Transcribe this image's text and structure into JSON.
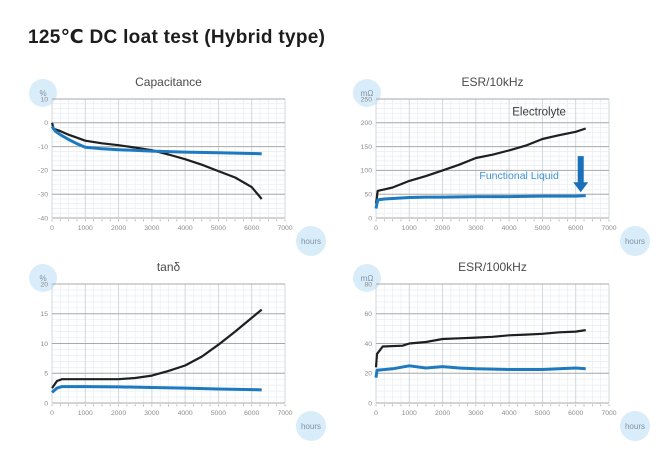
{
  "page": {
    "title": "125℃ DC loat test (Hybrid type)"
  },
  "colors": {
    "electrolyte_line": "#1f1f1f",
    "functional_liquid_line": "#1e7ac0",
    "arrow": "#1a70b8",
    "unit_bubble": "#d9ecfa",
    "grid_major_h": "#a9a9a9",
    "grid_major_v": "#ccd6dc",
    "grid_minor": "#e8eef2",
    "tick_label": "#8c8c8c"
  },
  "chart_data": [
    {
      "type": "line",
      "title": "Capacitance",
      "unit": "%",
      "xlabel": "hours",
      "xlim": [
        0,
        7000
      ],
      "ylim": [
        -40,
        10
      ],
      "xticks": [
        0,
        1000,
        2000,
        3000,
        4000,
        5000,
        6000,
        7000
      ],
      "yticks": [
        10,
        0,
        -10,
        -20,
        -30,
        -40
      ],
      "minor": {
        "x": 250,
        "y": 2
      },
      "grid": true,
      "series": [
        {
          "name": "Electrolyte",
          "color": "#1f1f1f",
          "width": 2.2,
          "x": [
            0,
            50,
            250,
            500,
            1000,
            1500,
            2000,
            2500,
            3000,
            3500,
            4000,
            4500,
            5000,
            5500,
            6000,
            6300
          ],
          "values": [
            0,
            -2.5,
            -3.5,
            -5,
            -7.5,
            -8.6,
            -9.4,
            -10.4,
            -11.5,
            -13.3,
            -15.3,
            -17.6,
            -20.3,
            -23,
            -27,
            -32
          ]
        },
        {
          "name": "Functional Liquid",
          "color": "#1e7ac0",
          "width": 3,
          "x": [
            0,
            100,
            250,
            500,
            750,
            1000,
            1500,
            2000,
            2500,
            3000,
            4000,
            5000,
            6000,
            6300
          ],
          "values": [
            -1.5,
            -3.5,
            -5,
            -7,
            -8.8,
            -10.3,
            -10.9,
            -11.3,
            -11.6,
            -11.9,
            -12.3,
            -12.6,
            -12.9,
            -13
          ]
        }
      ]
    },
    {
      "type": "line",
      "title": "ESR/10kHz",
      "unit": "mΩ",
      "xlabel": "hours",
      "xlim": [
        0,
        7000
      ],
      "ylim": [
        0,
        250
      ],
      "xticks": [
        0,
        1000,
        2000,
        3000,
        4000,
        5000,
        6000,
        7000
      ],
      "yticks": [
        250,
        200,
        150,
        100,
        50,
        0
      ],
      "minor": {
        "x": 250,
        "y": 10
      },
      "grid": true,
      "series": [
        {
          "name": "Electrolyte",
          "color": "#1f1f1f",
          "width": 2.2,
          "x": [
            0,
            50,
            250,
            500,
            1000,
            1500,
            2000,
            2500,
            3000,
            3500,
            4000,
            4500,
            5000,
            5500,
            6000,
            6300
          ],
          "values": [
            30,
            57,
            60,
            64,
            78,
            88,
            100,
            112,
            126,
            133,
            142,
            152,
            166,
            174,
            181,
            188
          ]
        },
        {
          "name": "Functional Liquid",
          "color": "#1e7ac0",
          "width": 3,
          "x": [
            0,
            50,
            250,
            500,
            1000,
            1500,
            2000,
            3000,
            4000,
            5000,
            6000,
            6300
          ],
          "values": [
            20,
            38,
            40,
            41,
            43,
            44,
            44,
            45,
            45,
            46,
            46,
            47
          ]
        }
      ],
      "annotations": [
        {
          "type": "text",
          "text": "Electrolyte",
          "x": 4900,
          "y": 215,
          "color": "#3a3a3a",
          "size": 11.5
        },
        {
          "type": "text",
          "text": "Functional Liquid",
          "x": 4300,
          "y": 82,
          "color": "#3f93d2",
          "size": 10.5
        },
        {
          "type": "arrow-down",
          "x": 6150,
          "y_from": 130,
          "y_to": 54,
          "color": "#1a70b8"
        }
      ]
    },
    {
      "type": "line",
      "title": "tanδ",
      "unit": "%",
      "xlabel": "hours",
      "xlim": [
        0,
        7000
      ],
      "ylim": [
        0,
        20
      ],
      "xticks": [
        0,
        1000,
        2000,
        3000,
        4000,
        5000,
        6000,
        7000
      ],
      "yticks": [
        20,
        15,
        10,
        5,
        0
      ],
      "minor": {
        "x": 250,
        "y": 1
      },
      "grid": true,
      "series": [
        {
          "name": "Electrolyte",
          "color": "#1f1f1f",
          "width": 2.2,
          "x": [
            0,
            150,
            300,
            1000,
            2000,
            2500,
            3000,
            3500,
            4000,
            4500,
            5000,
            5500,
            6000,
            6300
          ],
          "values": [
            2.5,
            3.7,
            4,
            4,
            4,
            4.2,
            4.6,
            5.4,
            6.3,
            7.8,
            9.8,
            12,
            14.3,
            15.7
          ]
        },
        {
          "name": "Functional Liquid",
          "color": "#1e7ac0",
          "width": 3,
          "x": [
            0,
            150,
            300,
            1000,
            2000,
            3000,
            4000,
            5000,
            6000,
            6300
          ],
          "values": [
            1.8,
            2.5,
            2.75,
            2.75,
            2.7,
            2.6,
            2.5,
            2.35,
            2.25,
            2.2
          ]
        }
      ]
    },
    {
      "type": "line",
      "title": "ESR/100kHz",
      "unit": "mΩ",
      "xlabel": "hours",
      "xlim": [
        0,
        7000
      ],
      "ylim": [
        0,
        80
      ],
      "xticks": [
        0,
        1000,
        2000,
        3000,
        4000,
        5000,
        6000,
        7000
      ],
      "yticks": [
        80,
        60,
        40,
        20,
        0
      ],
      "minor": {
        "x": 250,
        "y": 4
      },
      "grid": true,
      "series": [
        {
          "name": "Electrolyte",
          "color": "#1f1f1f",
          "width": 2.2,
          "x": [
            0,
            30,
            200,
            800,
            1000,
            1500,
            2000,
            2500,
            3000,
            3500,
            4000,
            4500,
            5000,
            5500,
            6000,
            6300
          ],
          "values": [
            24,
            33,
            38,
            38.5,
            40,
            41,
            43,
            43.5,
            44,
            44.5,
            45.5,
            46,
            46.5,
            47.5,
            48,
            49
          ]
        },
        {
          "name": "Functional Liquid",
          "color": "#1e7ac0",
          "width": 3,
          "x": [
            0,
            30,
            500,
            1000,
            1500,
            2000,
            2500,
            3000,
            4000,
            5000,
            5500,
            6000,
            6300
          ],
          "values": [
            17,
            22,
            23,
            25,
            23.5,
            24.5,
            23.5,
            23,
            22.5,
            22.5,
            23,
            23.5,
            23
          ]
        }
      ]
    }
  ]
}
